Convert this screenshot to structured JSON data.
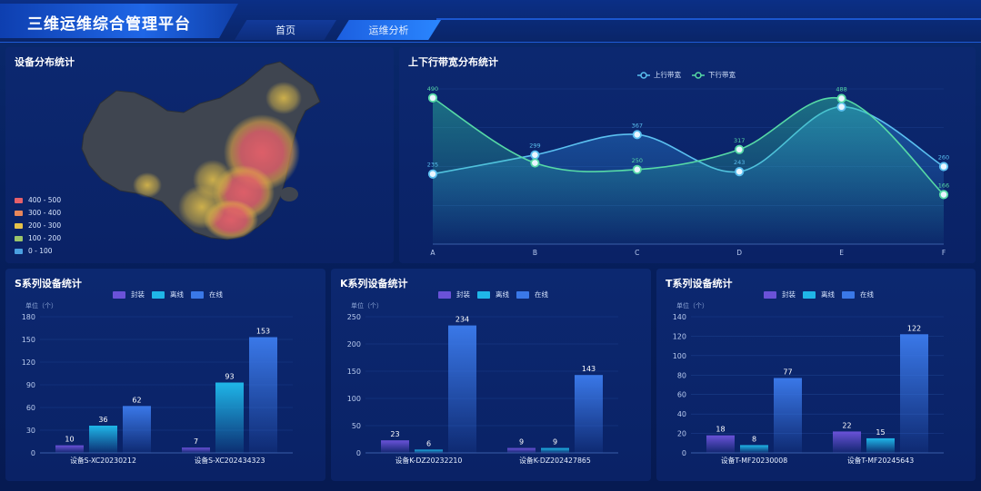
{
  "header": {
    "title": "三维运维综合管理平台",
    "tabs": [
      {
        "label": "首页"
      },
      {
        "label": "运维分析"
      }
    ]
  },
  "map_panel": {
    "title": "设备分布统计",
    "legend": [
      {
        "label": "400 - 500",
        "color": "#e5606a"
      },
      {
        "label": "300 - 400",
        "color": "#e8875a"
      },
      {
        "label": "200 - 300",
        "color": "#e6c24a"
      },
      {
        "label": "100 - 200",
        "color": "#9bc46a"
      },
      {
        "label": "0 - 100",
        "color": "#4aa0e0"
      }
    ]
  },
  "bandwidth_panel": {
    "title": "上下行带宽分布统计",
    "legend": [
      "上行带宽",
      "下行带宽"
    ]
  },
  "s_panel": {
    "title": "S系列设备统计",
    "unit": "单位（个）",
    "legend": [
      "封装",
      "离线",
      "在线"
    ]
  },
  "k_panel": {
    "title": "K系列设备统计",
    "unit": "单位（个）",
    "legend": [
      "封装",
      "离线",
      "在线"
    ]
  },
  "t_panel": {
    "title": "T系列设备统计",
    "unit": "单位（个）",
    "legend": [
      "封装",
      "离线",
      "在线"
    ]
  },
  "colors": {
    "packaged": "#6a52d8",
    "offline": "#1fb6e8",
    "online": "#3a78e8",
    "uplink": "#5bc0f0",
    "downlink": "#56d9a6"
  },
  "chart_data": [
    {
      "type": "line",
      "title": "上下行带宽分布统计",
      "categories": [
        "A",
        "B",
        "C",
        "D",
        "E",
        "F"
      ],
      "series": [
        {
          "name": "上行带宽",
          "values": [
            235,
            299,
            367,
            243,
            460,
            260
          ]
        },
        {
          "name": "下行带宽",
          "values": [
            490,
            272,
            250,
            317,
            488,
            166
          ]
        }
      ],
      "data_labels": [
        {
          "series": 0,
          "values": [
            "235",
            "299",
            "367",
            "243",
            "",
            "260"
          ]
        },
        {
          "series": 1,
          "values": [
            "490",
            "",
            "250",
            "317",
            "488",
            "166"
          ]
        }
      ],
      "ylim": [
        0,
        520
      ],
      "legend": "top-center",
      "grid": true
    },
    {
      "type": "bar",
      "title": "S系列设备统计",
      "categories": [
        "设备S-XC20230212",
        "设备S-XC202434323"
      ],
      "series": [
        {
          "name": "封装",
          "values": [
            10,
            7
          ]
        },
        {
          "name": "离线",
          "values": [
            36,
            93
          ]
        },
        {
          "name": "在线",
          "values": [
            62,
            153
          ]
        }
      ],
      "yticks": [
        0,
        30,
        60,
        90,
        120,
        150,
        180
      ],
      "ylim": [
        0,
        180
      ],
      "ylabel": "单位（个）",
      "legend": "top-center"
    },
    {
      "type": "bar",
      "title": "K系列设备统计",
      "categories": [
        "设备K-DZ20232210",
        "设备K-DZ202427865"
      ],
      "series": [
        {
          "name": "封装",
          "values": [
            23,
            9
          ]
        },
        {
          "name": "离线",
          "values": [
            6,
            9
          ]
        },
        {
          "name": "在线",
          "values": [
            234,
            143
          ]
        }
      ],
      "yticks": [
        0,
        50,
        100,
        150,
        200,
        250
      ],
      "ylim": [
        0,
        250
      ],
      "ylabel": "单位（个）",
      "legend": "top-center"
    },
    {
      "type": "bar",
      "title": "T系列设备统计",
      "categories": [
        "设备T-MF20230008",
        "设备T-MF20245643"
      ],
      "series": [
        {
          "name": "封装",
          "values": [
            18,
            22
          ]
        },
        {
          "name": "离线",
          "values": [
            8,
            15
          ]
        },
        {
          "name": "在线",
          "values": [
            77,
            122
          ]
        }
      ],
      "yticks": [
        0,
        20,
        40,
        60,
        80,
        100,
        120,
        140
      ],
      "ylim": [
        0,
        140
      ],
      "ylabel": "单位（个）",
      "legend": "top-center"
    }
  ]
}
